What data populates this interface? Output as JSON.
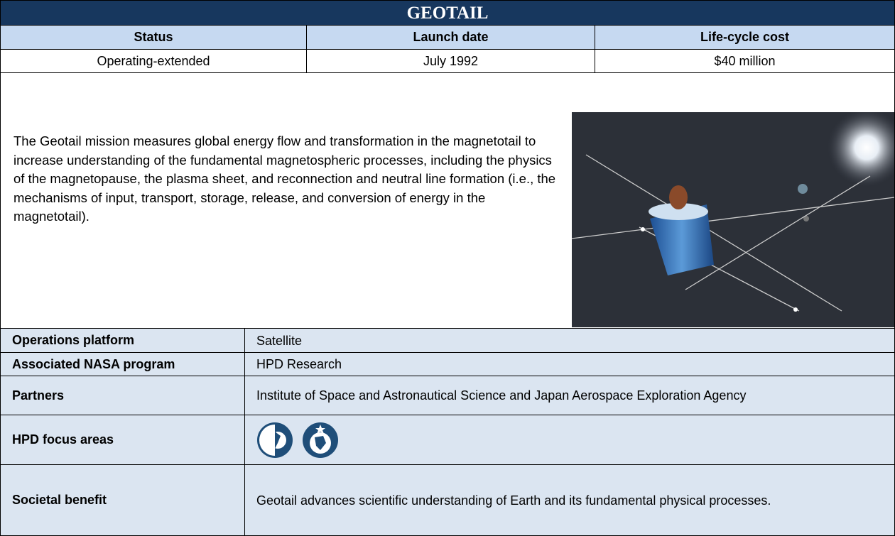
{
  "header": {
    "title": "GEOTAIL"
  },
  "summary": {
    "columns": [
      "Status",
      "Launch date",
      "Life-cycle cost"
    ],
    "values": [
      "Operating-extended",
      "July 1992",
      "$40 million"
    ]
  },
  "description": "The Geotail mission measures global energy flow and transformation in the magnetotail to increase understanding of the fundamental magnetospheric processes, including the physics of the magnetopause, the plasma sheet, and reconnection and neutral line formation (i.e., the mechanisms of input, transport, storage, release, and conversion of energy in the magnetotail).",
  "details": [
    {
      "label": "Operations platform",
      "value": "Satellite"
    },
    {
      "label": "Associated NASA program",
      "value": "HPD Research"
    },
    {
      "label": "Partners",
      "value": "Institute of Space and Astronautical Science and Japan Aerospace Exploration Agency"
    },
    {
      "label": "HPD focus areas"
    },
    {
      "label": "Societal benefit",
      "value": "Geotail advances scientific understanding of Earth and its fundamental physical processes."
    }
  ]
}
